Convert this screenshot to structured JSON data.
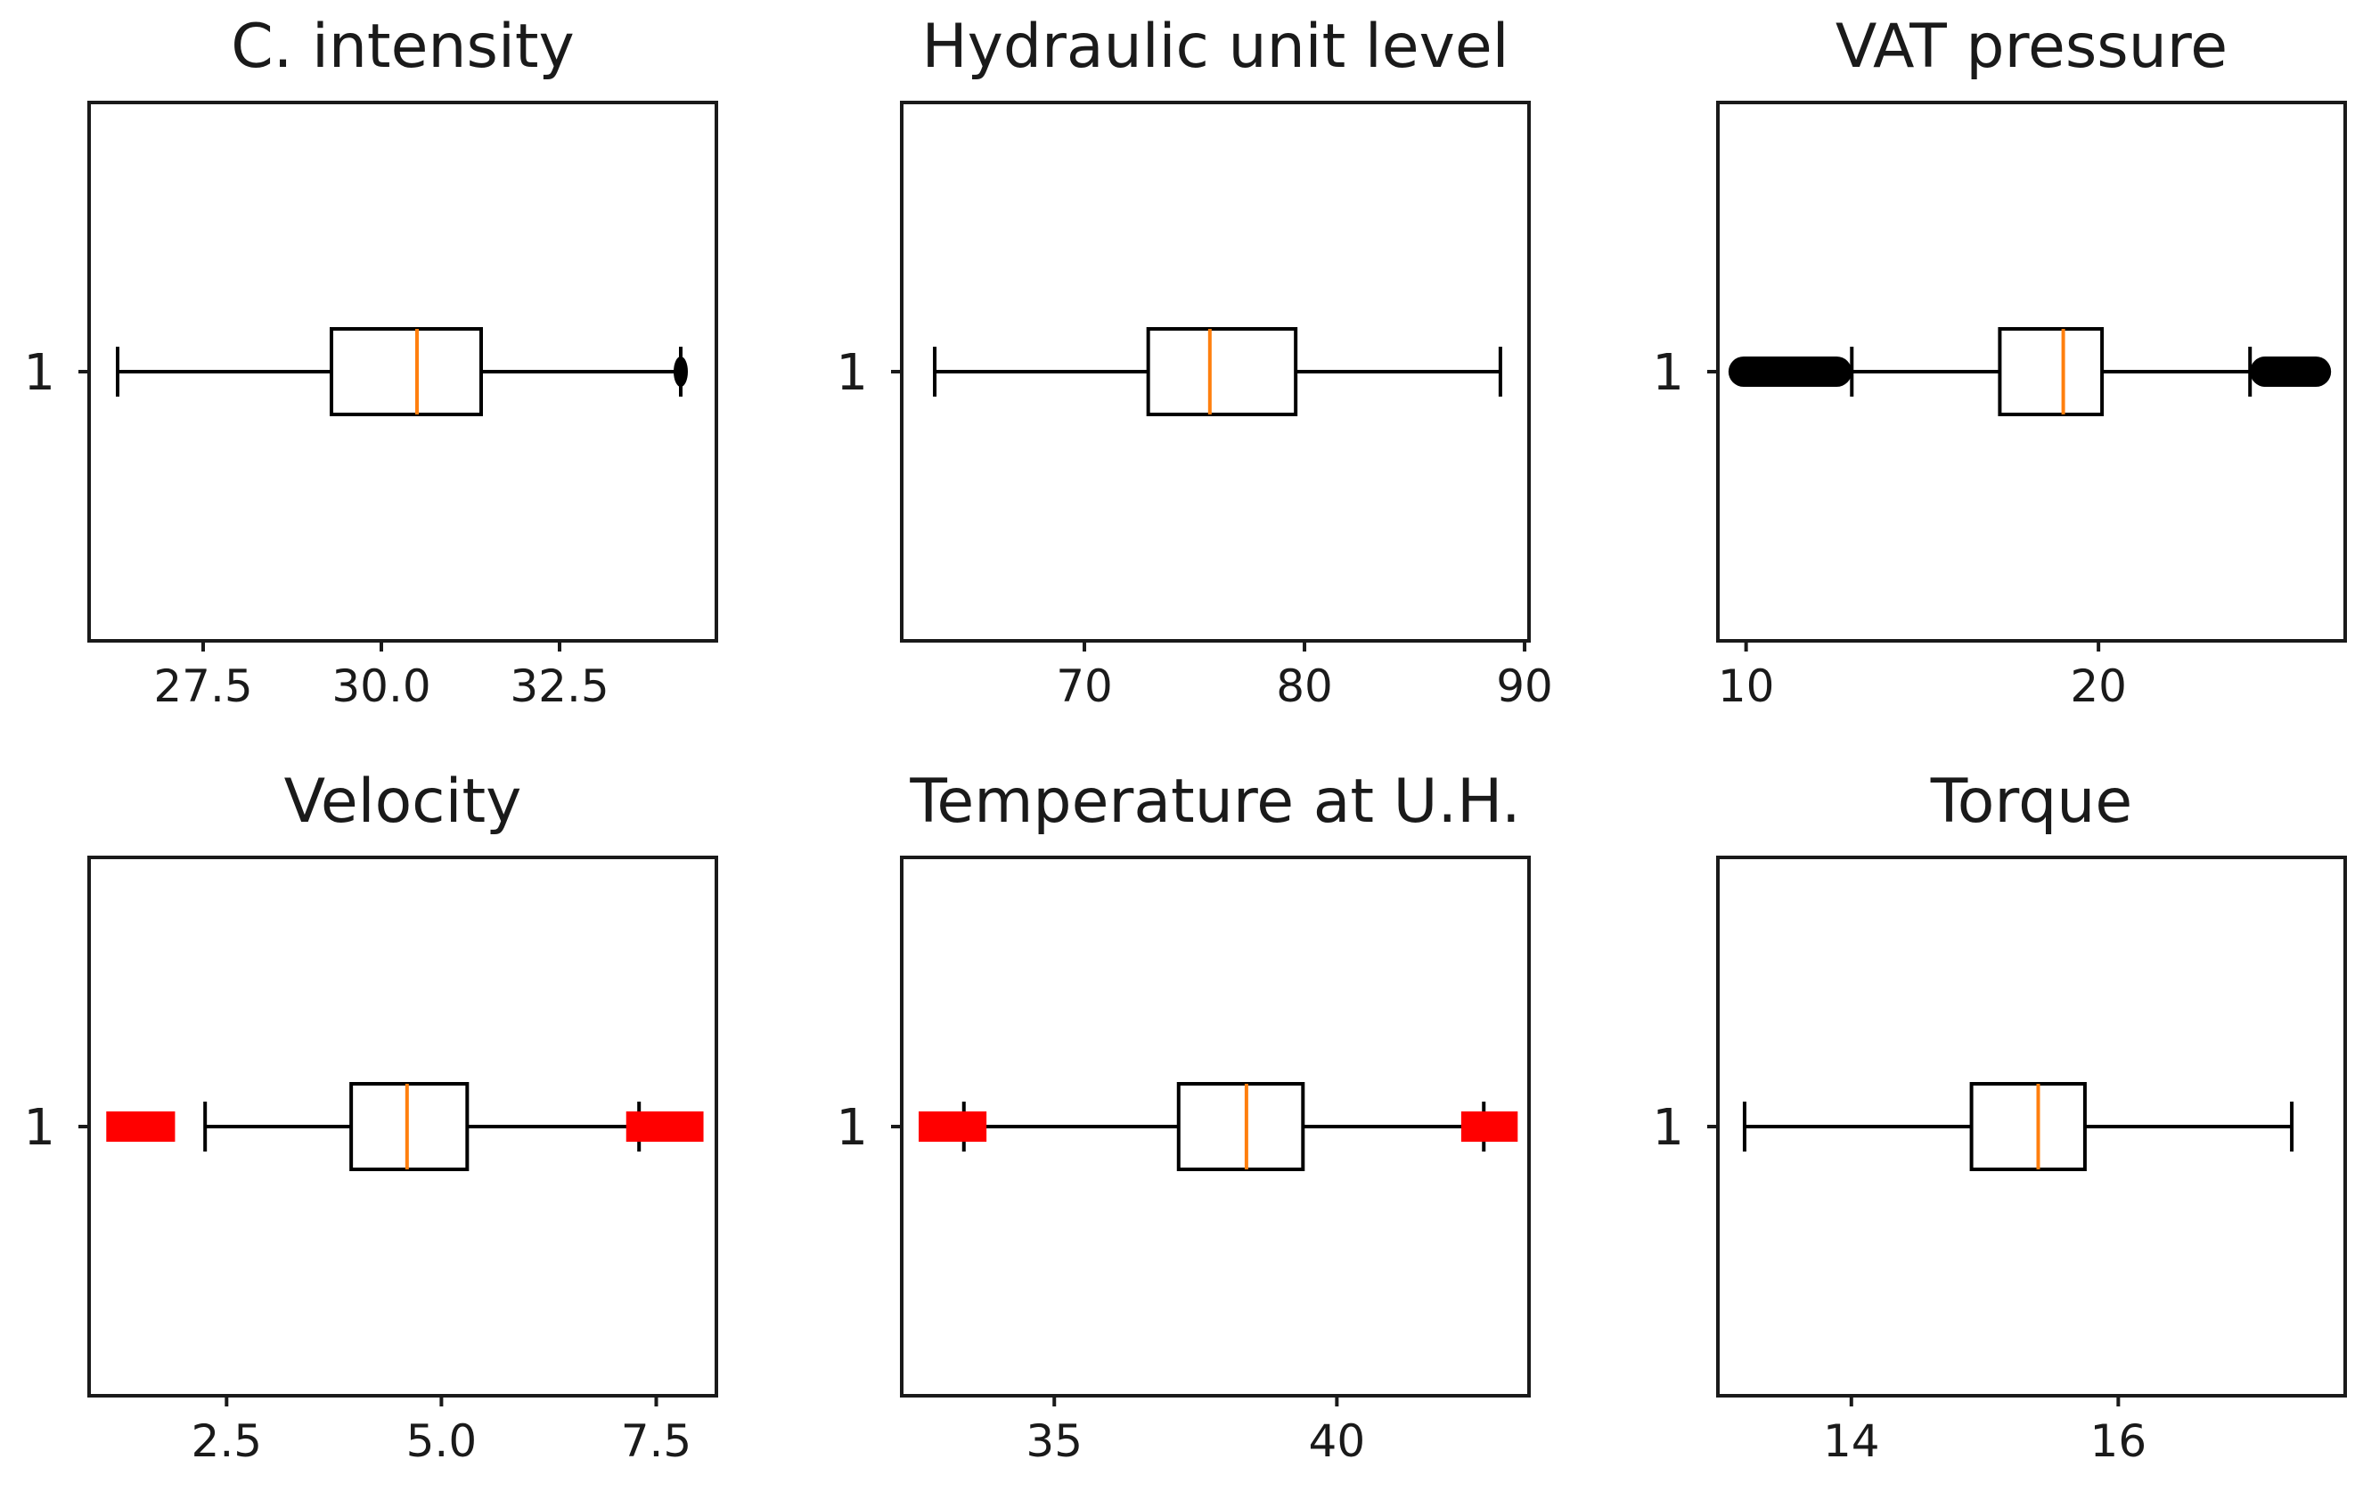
{
  "chart_data": [
    {
      "type": "boxplot",
      "title": "C. intensity",
      "category": "1",
      "xlim": [
        25.9,
        34.7
      ],
      "xticks": [
        27.5,
        30.0,
        32.5
      ],
      "xtick_labels": [
        "27.5",
        "30.0",
        "32.5"
      ],
      "whisker_low": 26.3,
      "q1": 29.3,
      "median": 30.5,
      "q3": 31.4,
      "whisker_high": 34.2,
      "outliers": [
        {
          "from": 34.1,
          "to": 34.3,
          "color": "#000000"
        }
      ]
    },
    {
      "type": "boxplot",
      "title": "Hydraulic unit level",
      "category": "1",
      "xlim": [
        61.7,
        90.2
      ],
      "xticks": [
        70,
        80,
        90
      ],
      "xtick_labels": [
        "70",
        "80",
        "90"
      ],
      "whisker_low": 63.2,
      "q1": 72.9,
      "median": 75.7,
      "q3": 79.6,
      "whisker_high": 88.9,
      "outliers": []
    },
    {
      "type": "boxplot",
      "title": "VAT pressure",
      "category": "1",
      "xlim": [
        9.2,
        27.0
      ],
      "xticks": [
        10,
        20
      ],
      "xtick_labels": [
        "10",
        "20"
      ],
      "whisker_low": 13.0,
      "q1": 17.2,
      "median": 19.0,
      "q3": 20.1,
      "whisker_high": 24.3,
      "outliers": [
        {
          "from": 9.5,
          "to": 13.0,
          "color": "#000000"
        },
        {
          "from": 24.3,
          "to": 26.6,
          "color": "#000000"
        }
      ]
    },
    {
      "type": "boxplot",
      "title": "Velocity",
      "category": "1",
      "xlim": [
        0.9,
        8.2
      ],
      "xticks": [
        2.5,
        5.0,
        7.5
      ],
      "xtick_labels": [
        "2.5",
        "5.0",
        "7.5"
      ],
      "whisker_low": 2.25,
      "q1": 3.95,
      "median": 4.6,
      "q3": 5.3,
      "whisker_high": 7.3,
      "outliers": [
        {
          "from": 1.1,
          "to": 1.9,
          "color": "#ff0000"
        },
        {
          "from": 7.15,
          "to": 8.05,
          "color": "#ff0000"
        }
      ]
    },
    {
      "type": "boxplot",
      "title": "Temperature at U.H.",
      "category": "1",
      "xlim": [
        32.3,
        43.4
      ],
      "xticks": [
        35,
        40
      ],
      "xtick_labels": [
        "35",
        "40"
      ],
      "whisker_low": 33.4,
      "q1": 37.2,
      "median": 38.4,
      "q3": 39.4,
      "whisker_high": 42.6,
      "outliers": [
        {
          "from": 32.6,
          "to": 33.8,
          "color": "#ff0000"
        },
        {
          "from": 42.2,
          "to": 43.2,
          "color": "#ff0000"
        }
      ]
    },
    {
      "type": "boxplot",
      "title": "Torque",
      "category": "1",
      "xlim": [
        13.0,
        17.7
      ],
      "xticks": [
        14,
        16
      ],
      "xtick_labels": [
        "14",
        "16"
      ],
      "whisker_low": 13.2,
      "q1": 14.9,
      "median": 15.4,
      "q3": 15.75,
      "whisker_high": 17.3,
      "outliers": []
    }
  ]
}
